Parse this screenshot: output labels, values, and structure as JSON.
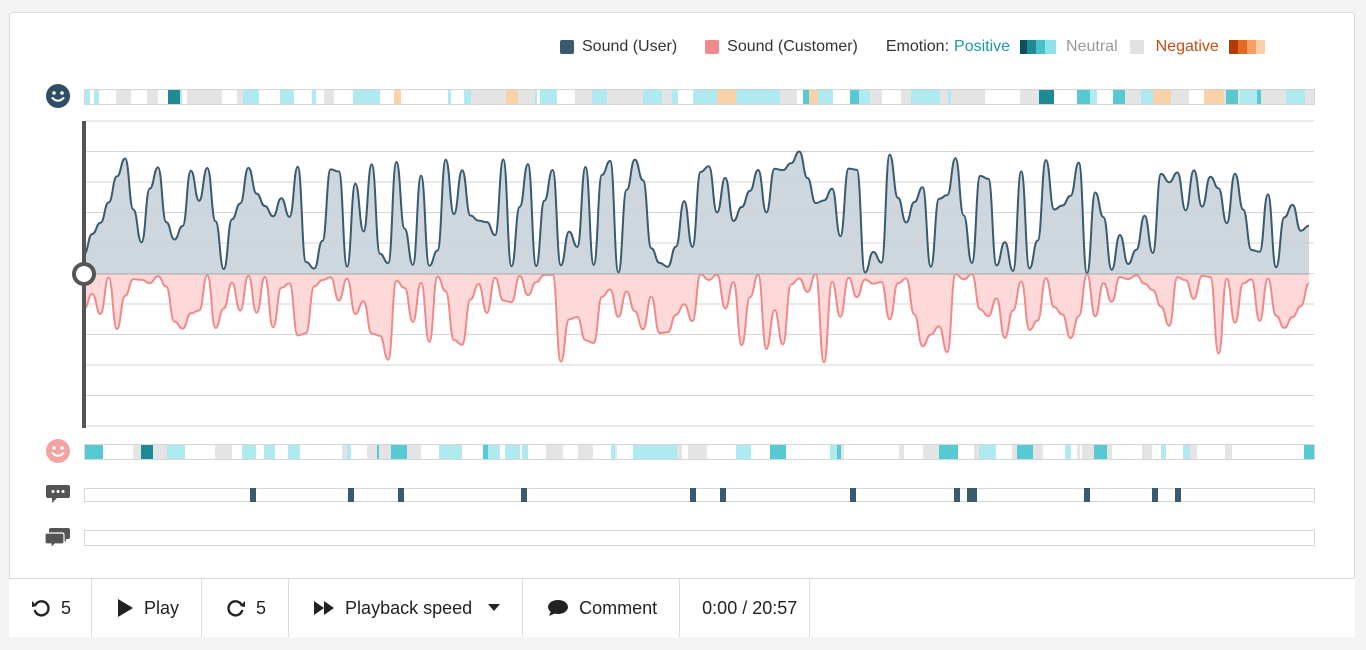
{
  "legend": {
    "user_label": "Sound (User)",
    "customer_label": "Sound (Customer)",
    "emotion_prefix": "Emotion:",
    "positive_label": "Positive",
    "neutral_label": "Neutral",
    "negative_label": "Negative"
  },
  "colors": {
    "user": "#3a5a70",
    "customer": "#f08a8a",
    "positive": "#5fd3dd",
    "positive_dark": "#1d7e8c",
    "neutral": "#e2e2e2",
    "negative": "#f5c9a0"
  },
  "icons": {
    "user_emotion": "smiley-face-icon",
    "customer_emotion": "smiley-face-icon",
    "comments": "comment-bubble-icon",
    "transcript": "chat-bubbles-icon"
  },
  "controls": {
    "rewind_label": "5",
    "play_label": "Play",
    "forward_label": "5",
    "speed_label": "Playback speed",
    "comment_label": "Comment",
    "time_display": "0:00 / 20:57"
  },
  "comment_markers": [
    0.135,
    0.215,
    0.255,
    0.355,
    0.493,
    0.517,
    0.623,
    0.707,
    0.718,
    0.721,
    0.813,
    0.868,
    0.887
  ]
}
